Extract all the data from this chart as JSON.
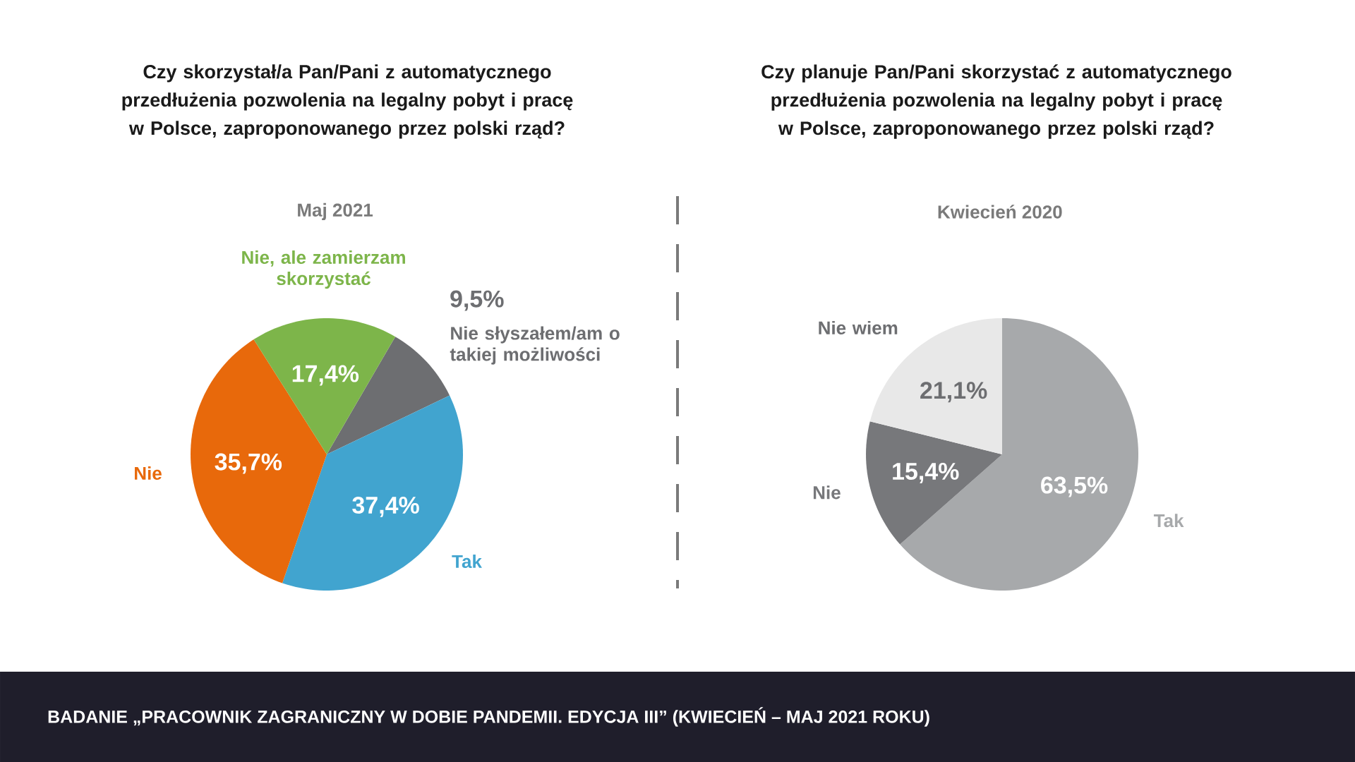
{
  "chart_data": [
    {
      "type": "pie",
      "title": "Czy skorzystał/a Pan/Pani z automatycznego przedłużenia pozwolenia na legalny pobyt i pracę w Polsce, zaproponowanego przez polski rząd?",
      "subtitle": "Maj  2021",
      "categories": [
        "Nie słyszałem/am o takiej możliwości",
        "Tak",
        "Nie",
        "Nie, ale zamierzam skorzystać"
      ],
      "values": [
        9.5,
        37.4,
        35.7,
        17.4
      ],
      "colors": [
        "#6d6e71",
        "#41a4cf",
        "#e8690b",
        "#7db54a"
      ],
      "value_labels": [
        "9,5%",
        "37,4%",
        "35,7%",
        "17,4%"
      ],
      "annotations": [
        "BADANIE „PRACOWNIK ZAGRANICZNY W DOBIE PANDEMII. EDYCJA III”  (KWIECIEŃ – MAJ 2021 ROKU)"
      ]
    },
    {
      "type": "pie",
      "title": "Czy planuje Pan/Pani skorzystać z automatycznego przedłużenia pozwolenia na legalny pobyt i pracę w Polsce, zaproponowanego przez polski rząd?",
      "subtitle": "Kwiecień 2020",
      "categories": [
        "Tak",
        "Nie",
        "Nie wiem"
      ],
      "values": [
        63.5,
        15.4,
        21.1
      ],
      "colors": [
        "#a7a9ab",
        "#77787b",
        "#e8e8e8"
      ],
      "value_labels": [
        "63,5%",
        "15,4%",
        "21,1%"
      ]
    }
  ]
}
